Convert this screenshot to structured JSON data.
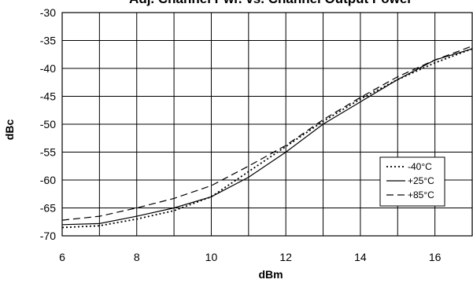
{
  "chart_data": {
    "type": "line",
    "title": "Adj. Channel Pwr. vs. Channel Output Power",
    "xlabel": "dBm",
    "ylabel": "dBc",
    "xlim": [
      6,
      17
    ],
    "ylim": [
      -70,
      -30
    ],
    "xticks": [
      6,
      8,
      10,
      12,
      14,
      16
    ],
    "yticks": [
      -30,
      -35,
      -40,
      -45,
      -50,
      -55,
      -60,
      -65,
      -70
    ],
    "grid": true,
    "legend_position": "bottom-right",
    "series": [
      {
        "name": "-40°C",
        "style": "dotted",
        "color": "#000000",
        "x": [
          6,
          7,
          8,
          9,
          10,
          11,
          12,
          13,
          14,
          15,
          16,
          17
        ],
        "y": [
          -68.5,
          -68.2,
          -67.0,
          -65.5,
          -63.0,
          -58.5,
          -54.0,
          -49.5,
          -45.5,
          -42.0,
          -39.0,
          -36.5
        ]
      },
      {
        "name": "+25°C",
        "style": "solid",
        "color": "#000000",
        "x": [
          6,
          7,
          8,
          9,
          10,
          11,
          12,
          13,
          14,
          15,
          16,
          17
        ],
        "y": [
          -68.0,
          -67.8,
          -66.5,
          -65.0,
          -63.0,
          -59.5,
          -55.0,
          -50.0,
          -46.0,
          -42.0,
          -38.5,
          -36.5
        ]
      },
      {
        "name": "+85°C",
        "style": "dashed",
        "color": "#000000",
        "x": [
          6,
          7,
          8,
          9,
          10,
          11,
          12,
          13,
          14,
          15,
          16,
          17
        ],
        "y": [
          -67.2,
          -66.5,
          -65.0,
          -63.3,
          -61.0,
          -57.5,
          -53.8,
          -49.2,
          -45.2,
          -41.5,
          -38.5,
          -36.0
        ]
      }
    ]
  }
}
